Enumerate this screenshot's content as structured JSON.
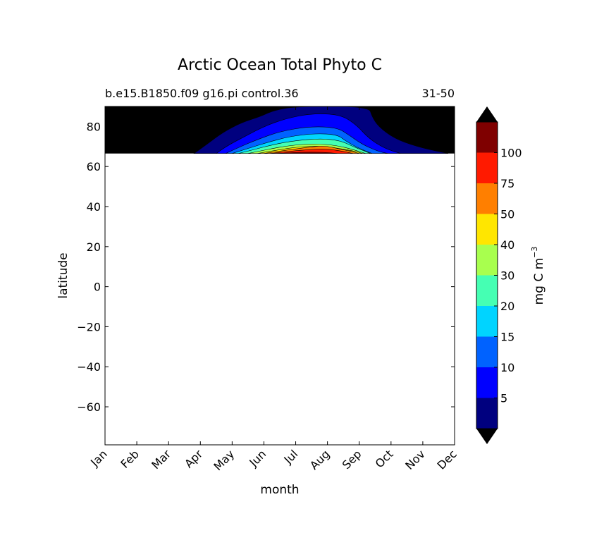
{
  "chart_data": {
    "type": "contour",
    "title": "Arctic Ocean Total Phyto C",
    "subtitle_left": "b.e15.B1850.f09 g16.pi control.36",
    "subtitle_right": "31-50",
    "xlabel": "month",
    "ylabel": "latitude",
    "x_ticks": [
      "Jan",
      "Feb",
      "Mar",
      "Apr",
      "May",
      "Jun",
      "Jul",
      "Aug",
      "Sep",
      "Oct",
      "Nov",
      "Dec"
    ],
    "xlim": [
      0.5,
      11.5
    ],
    "ylim": [
      -79,
      90
    ],
    "y_ticks": [
      -60,
      -40,
      -20,
      0,
      20,
      40,
      60,
      80
    ],
    "y_tick_labels": [
      "−60",
      "−40",
      "−20",
      "0",
      "20",
      "40",
      "60",
      "80"
    ],
    "data_lat_range": [
      66.5,
      90
    ],
    "colorbar": {
      "label": "mg C m",
      "label_sup": "−3",
      "levels": [
        0,
        5,
        10,
        15,
        20,
        30,
        40,
        50,
        75,
        100,
        125
      ],
      "tick_labels": [
        "5",
        "10",
        "15",
        "20",
        "30",
        "40",
        "50",
        "75",
        "100"
      ],
      "colors": [
        "#00007f",
        "#0000ff",
        "#0062ff",
        "#00d4ff",
        "#45ffb3",
        "#a8ff4e",
        "#ffe600",
        "#ff7f00",
        "#ff1a00",
        "#7f0000"
      ],
      "under_color": "#000000",
      "over_color": "#000000"
    },
    "field": {
      "bg_color": "#000000",
      "contours": [
        {
          "level": 0,
          "points": [
            [
              3.3,
              66.5
            ],
            [
              3.7,
              71
            ],
            [
              4.2,
              77
            ],
            [
              4.8,
              82
            ],
            [
              5.4,
              85
            ],
            [
              5.8,
              88
            ],
            [
              6.5,
              90
            ],
            [
              8.8,
              90
            ],
            [
              8.9,
              85
            ],
            [
              9.1,
              80
            ],
            [
              9.6,
              74
            ],
            [
              10.3,
              70
            ],
            [
              11,
              67.5
            ],
            [
              11.3,
              66.5
            ]
          ]
        },
        {
          "level": 5,
          "points": [
            [
              4.0,
              66.5
            ],
            [
              4.3,
              70
            ],
            [
              4.9,
              75
            ],
            [
              5.5,
              80
            ],
            [
              6.2,
              84
            ],
            [
              7,
              86.5
            ],
            [
              7.9,
              86
            ],
            [
              8.4,
              81
            ],
            [
              8.8,
              74
            ],
            [
              9.3,
              69
            ],
            [
              9.8,
              66.5
            ]
          ]
        },
        {
          "level": 10,
          "points": [
            [
              4.3,
              66.5
            ],
            [
              4.7,
              69.5
            ],
            [
              5.3,
              73.5
            ],
            [
              6,
              77.5
            ],
            [
              6.9,
              80
            ],
            [
              7.8,
              79.5
            ],
            [
              8.2,
              75.5
            ],
            [
              8.6,
              71
            ],
            [
              9.1,
              67.5
            ],
            [
              9.4,
              66.5
            ]
          ]
        },
        {
          "level": 15,
          "points": [
            [
              4.5,
              66.5
            ],
            [
              5,
              69
            ],
            [
              5.6,
              72
            ],
            [
              6.3,
              75
            ],
            [
              7.1,
              76.5
            ],
            [
              7.8,
              76
            ],
            [
              8.1,
              72.5
            ],
            [
              8.5,
              69
            ],
            [
              8.9,
              66.5
            ]
          ]
        },
        {
          "level": 20,
          "points": [
            [
              4.7,
              66.5
            ],
            [
              5.2,
              68.5
            ],
            [
              5.8,
              71
            ],
            [
              6.5,
              73
            ],
            [
              7.3,
              74
            ],
            [
              7.9,
              73
            ],
            [
              8.3,
              70
            ],
            [
              8.7,
              67.5
            ],
            [
              8.85,
              66.5
            ]
          ]
        },
        {
          "level": 30,
          "points": [
            [
              5,
              66.5
            ],
            [
              5.6,
              68.5
            ],
            [
              6.3,
              70.5
            ],
            [
              7.1,
              71.5
            ],
            [
              7.8,
              70.5
            ],
            [
              8.3,
              68.5
            ],
            [
              8.7,
              66.5
            ]
          ]
        },
        {
          "level": 40,
          "points": [
            [
              5.3,
              66.5
            ],
            [
              6,
              68.5
            ],
            [
              6.7,
              70
            ],
            [
              7.3,
              70.2
            ],
            [
              7.9,
              69
            ],
            [
              8.4,
              67.5
            ],
            [
              8.6,
              66.5
            ]
          ]
        },
        {
          "level": 50,
          "points": [
            [
              5.5,
              66.5
            ],
            [
              6.2,
              68.2
            ],
            [
              6.9,
              69.6
            ],
            [
              7.4,
              70.5
            ],
            [
              7.9,
              68.7
            ],
            [
              8.3,
              67.4
            ],
            [
              8.5,
              66.5
            ]
          ]
        },
        {
          "level": 75,
          "points": [
            [
              5.7,
              66.5
            ],
            [
              6.4,
              67.8
            ],
            [
              7,
              68.5
            ],
            [
              7.5,
              68.8
            ],
            [
              8,
              67.6
            ],
            [
              8.3,
              66.5
            ]
          ]
        },
        {
          "level": 100,
          "points": [
            [
              5.85,
              66.5
            ],
            [
              6.4,
              67
            ],
            [
              7,
              67.2
            ],
            [
              7.5,
              67
            ],
            [
              7.8,
              66.5
            ]
          ]
        }
      ]
    }
  }
}
